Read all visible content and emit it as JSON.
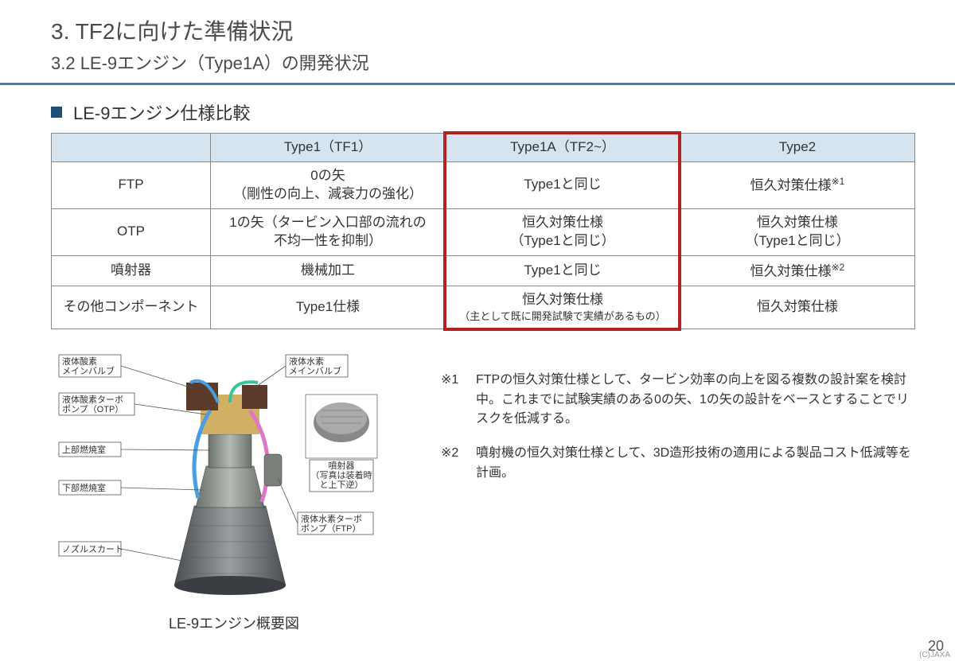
{
  "header": {
    "title_main": "3. TF2に向けた準備状況",
    "title_sub": "3.2 LE-9エンジン（Type1A）の開発状況"
  },
  "section_title": "LE-9エンジン仕様比較",
  "table": {
    "columns": [
      "",
      "Type1（TF1）",
      "Type1A（TF2~）",
      "Type2"
    ],
    "highlight_col_index": 2,
    "highlight_border_color": "#b22222",
    "header_bg": "#d6e4ef",
    "border_color": "#888888",
    "rows": [
      {
        "head": "FTP",
        "cells": [
          "0の矢\n（剛性の向上、減衰力の強化）",
          "Type1と同じ",
          "恒久対策仕様<sup>※1</sup>"
        ]
      },
      {
        "head": "OTP",
        "cells": [
          "1の矢（タービン入口部の流れの\n不均一性を抑制）",
          "恒久対策仕様\n（Type1と同じ）",
          "恒久対策仕様\n（Type1と同じ）"
        ]
      },
      {
        "head": "噴射器",
        "cells": [
          "機械加工",
          "Type1と同じ",
          "恒久対策仕様<sup>※2</sup>"
        ]
      },
      {
        "head": "その他コンポーネント",
        "cells": [
          "Type1仕様",
          "恒久対策仕様\n<small>（主として既に開発試験で実績があるもの）</small>",
          "恒久対策仕様"
        ]
      }
    ]
  },
  "diagram": {
    "caption": "LE-9エンジン概要図",
    "labels": {
      "lox_valve": "液体酸素\nメインバルブ",
      "otp": "液体酸素ターボ\nポンプ（OTP）",
      "upper_chamber": "上部燃焼室",
      "lower_chamber": "下部燃焼室",
      "nozzle_skirt": "ノズルスカート",
      "lh2_valve": "液体水素\nメインバルブ",
      "injector": "噴射器\n（写真は装着時\nと上下逆）",
      "ftp": "液体水素ターボ\nポンプ（FTP）"
    },
    "colors": {
      "nozzle": "#6b6f73",
      "nozzle_dark": "#4a4e52",
      "chamber": "#8a8f8a",
      "pipe_blue": "#4a9de0",
      "pipe_pink": "#e077c4",
      "pipe_green": "#37c49a",
      "block_brown": "#5c3a2a",
      "block_gold": "#c9a24a",
      "injector_photo": "#888888"
    }
  },
  "notes": [
    {
      "marker": "※1",
      "text": "FTPの恒久対策仕様として、タービン効率の向上を図る複数の設計案を検討中。これまでに試験実績のある0の矢、1の矢の設計をベースとすることでリスクを低減する。"
    },
    {
      "marker": "※2",
      "text": "噴射機の恒久対策仕様として、3D造形技術の適用による製品コスト低減等を計画。"
    }
  ],
  "page_number": "20",
  "copyright": "(C)JAXA"
}
